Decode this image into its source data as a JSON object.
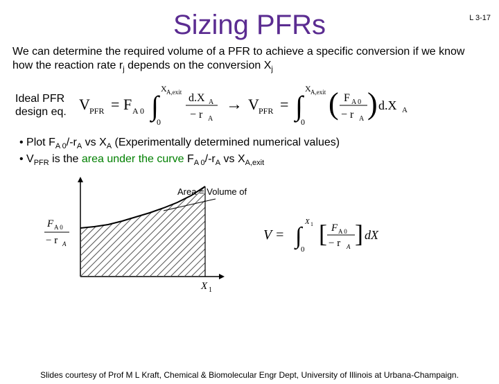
{
  "slide_number": "L 3-17",
  "title": "Sizing PFRs",
  "intro_parts": {
    "a": "We can determine the required volume of a PFR to achieve a specific conversion if we know how the reaction rate r",
    "sub1": "j",
    "b": " depends on the conversion X",
    "sub2": "j"
  },
  "eq_label_line1": "Ideal PFR",
  "eq_label_line2": "design eq.",
  "equation_svg": {
    "text_Vpfr": "V",
    "text_pfr": "PFR",
    "text_eq": "=",
    "text_FA0": "F",
    "text_A0": "A 0",
    "int_lower": "0",
    "int_upper": "X",
    "int_upper_sub": "A,exit",
    "frac_d": "d.X",
    "frac_d_sub": "A",
    "frac_den": "− r",
    "frac_den_sub": "A",
    "arrow": "→",
    "rhs_frac_num": "F",
    "rhs_frac_num_sub": "A 0",
    "rhs_frac_den": "− r",
    "rhs_frac_den_sub": "A",
    "rhs_dX": "d.X",
    "rhs_dX_sub": "A"
  },
  "bullet1": {
    "prefix": "• Plot F",
    "s1": "A 0",
    "mid1": "/-r",
    "s2": "A",
    "mid2": " vs X",
    "s3": "A",
    "tail": " (Experimentally determined numerical values)"
  },
  "bullet2": {
    "prefix": "• V",
    "s1": "PFR",
    "mid1": " is the ",
    "green": "area under the curve",
    "mid2": " F",
    "s2": "A 0",
    "mid3": "/-r",
    "s3": "A",
    "mid4": " vs X",
    "s4": "A,exit"
  },
  "chart": {
    "type": "area",
    "ylabel_num": "F",
    "ylabel_num_sub": "A 0",
    "ylabel_den": "− r",
    "ylabel_den_sub": "A",
    "xlabel": "X",
    "xlabel_sub": "1",
    "area_label": "Area = Volume of PFR",
    "curve_points": [
      [
        0,
        60
      ],
      [
        20,
        58
      ],
      [
        40,
        55
      ],
      [
        60,
        50
      ],
      [
        80,
        44
      ],
      [
        100,
        38
      ],
      [
        120,
        31
      ],
      [
        140,
        23
      ],
      [
        160,
        13
      ],
      [
        180,
        0
      ]
    ],
    "hatch_spacing": 10,
    "stroke": "#555555",
    "fill": "#ffffff",
    "axis_color": "#000000",
    "curve_width": 2
  },
  "side_eq": {
    "lhs": "V =",
    "int_upper": "X",
    "int_upper_sub": "1",
    "int_lower": "0",
    "num": "F",
    "num_sub": "A 0",
    "den": "− r",
    "den_sub": "A",
    "tail": "dX"
  },
  "footer": "Slides courtesy of Prof M L Kraft, Chemical & Biomolecular Engr Dept, University of Illinois at Urbana-Champaign."
}
